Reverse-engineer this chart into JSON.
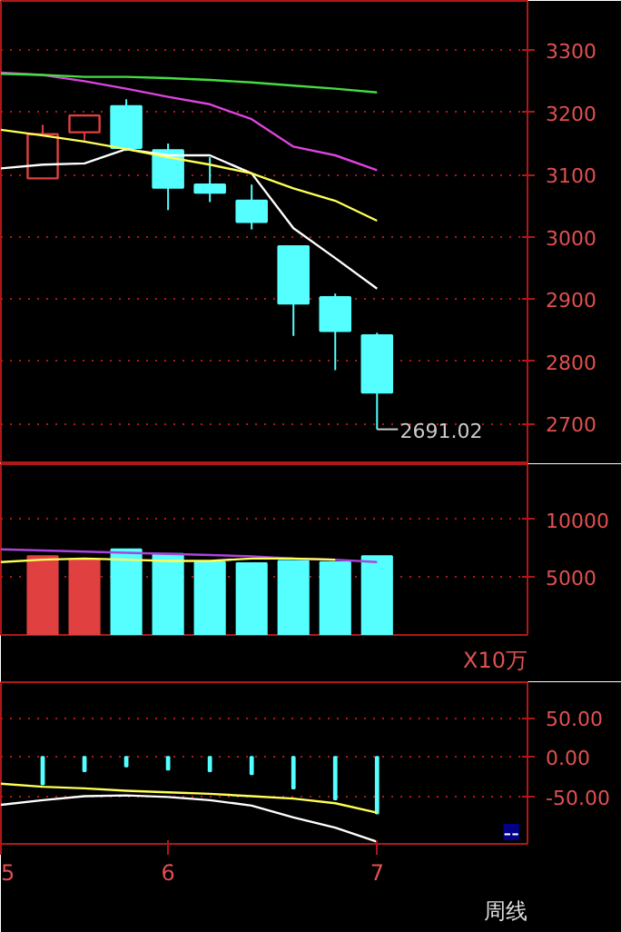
{
  "chart_data": [
    {
      "type": "candlestick",
      "categories": [
        null,
        null,
        null,
        null,
        null,
        null,
        null,
        null,
        null,
        null,
        null,
        null,
        null
      ],
      "ohlc": [
        null,
        [
          3094,
          3180,
          3094,
          3165
        ],
        [
          3168,
          3195,
          3155,
          3195
        ],
        [
          3210,
          3221,
          3138,
          3143
        ],
        [
          3139,
          3150,
          3043,
          3079
        ],
        [
          3084,
          3128,
          3056,
          3071
        ],
        [
          3058,
          3084,
          3012,
          3024
        ],
        [
          2985,
          2985,
          2841,
          2893
        ],
        [
          2903,
          2909,
          2786,
          2849
        ],
        [
          2842,
          2846,
          2691.02,
          2750
        ],
        null,
        null,
        null
      ],
      "colors": [
        null,
        "#e04040",
        "#e04040",
        "#55ffff",
        "#55ffff",
        "#55ffff",
        "#55ffff",
        "#55ffff",
        "#55ffff",
        "#55ffff",
        null,
        null,
        null
      ],
      "series": [
        {
          "type": "line",
          "color": "#ffffff",
          "values": [
            3110,
            3116,
            3118,
            3141,
            3131,
            3131,
            3102,
            3014,
            2966,
            2917,
            null,
            null,
            null
          ]
        },
        {
          "type": "line",
          "color": "#ffff55",
          "values": [
            3172,
            3163,
            3153,
            3141,
            3128,
            3116,
            3102,
            3078,
            3058,
            3026,
            null,
            null,
            null
          ]
        },
        {
          "type": "line",
          "color": "#dd44dd",
          "values": [
            3264,
            3260,
            3250,
            3238,
            3225,
            3213,
            3189,
            3145,
            3131,
            3107,
            null,
            null,
            null
          ]
        },
        {
          "type": "line",
          "color": "#44dd44",
          "values": [
            3262,
            3260,
            3257,
            3257,
            3255,
            3252,
            3248,
            3243,
            3238,
            3232,
            null,
            null,
            null
          ]
        }
      ],
      "ylim": [
        2635,
        3379
      ],
      "yticks": [
        2700,
        2800,
        2900,
        3000,
        3100,
        3200,
        3300
      ],
      "annotations": [
        "2691.02"
      ],
      "grid": "y",
      "tick_labels": "y"
    },
    {
      "type": "bar",
      "categories": [
        null,
        null,
        null,
        null,
        null,
        null,
        null,
        null,
        null,
        null,
        null,
        null,
        null
      ],
      "values": [
        null,
        6800,
        6500,
        7400,
        7000,
        6300,
        6200,
        6400,
        6300,
        6800,
        null,
        null,
        null
      ],
      "colors": [
        null,
        "#e04040",
        "#e04040",
        "#55ffff",
        "#55ffff",
        "#55ffff",
        "#55ffff",
        "#55ffff",
        "#55ffff",
        "#55ffff",
        null,
        null,
        null
      ],
      "series": [
        {
          "type": "line",
          "color": "#aa44dd",
          "values": [
            7400,
            7300,
            7200,
            7100,
            7000,
            6900,
            6800,
            6600,
            6500,
            6300,
            null,
            null,
            null
          ]
        },
        {
          "type": "line",
          "color": "#ffff55",
          "values": [
            6300,
            6500,
            6600,
            6500,
            6400,
            6400,
            6600,
            6600,
            6500,
            null,
            null,
            null,
            null
          ]
        }
      ],
      "ylim": [
        0,
        14750
      ],
      "yticks": [
        5000,
        10000
      ],
      "annotations": [
        "X10万"
      ],
      "grid": "y",
      "tick_labels": "y"
    },
    {
      "type": "bar",
      "categories": [
        "5",
        null,
        null,
        null,
        "6",
        null,
        null,
        null,
        null,
        "7",
        null,
        null,
        null
      ],
      "values": [
        null,
        -35,
        -18,
        -12,
        -16,
        -18,
        -22,
        -40,
        -54,
        -72,
        null,
        null,
        null
      ],
      "color": "#55ffff",
      "series": [
        {
          "type": "line",
          "color": "#ffff55",
          "values": [
            -34,
            -38,
            -40,
            -43,
            -45,
            -47,
            -50,
            -53,
            -59,
            -71,
            null,
            null,
            null
          ]
        },
        {
          "type": "line",
          "color": "#ffffff",
          "values": [
            -61,
            -55,
            -50,
            -49,
            -51,
            -55,
            -62,
            -77,
            -90,
            -108,
            null,
            null,
            null
          ]
        }
      ],
      "ylim": [
        -110.8,
        95.4
      ],
      "yticks": [
        {
          "value": 50,
          "label": "50.00"
        },
        {
          "value": 0,
          "label": "0.00"
        },
        {
          "value": -50,
          "label": "-50.00"
        }
      ],
      "annotations": [
        "--",
        "周线"
      ],
      "grid": "y"
    }
  ]
}
